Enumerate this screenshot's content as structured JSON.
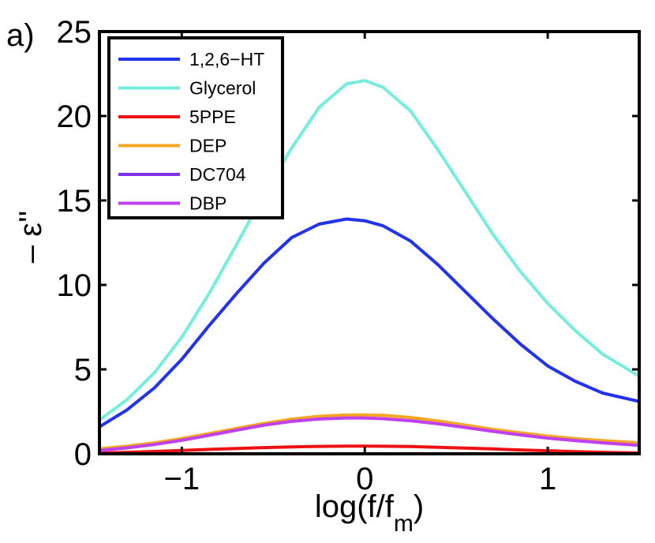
{
  "chart_data": {
    "type": "line",
    "panel_label": "a)",
    "xlabel": {
      "main": "log(f/f",
      "sub": "m",
      "close": ")"
    },
    "ylabel": "– ε''",
    "xlim": [
      -1.45,
      1.5
    ],
    "ylim": [
      0,
      25
    ],
    "xticks": [
      {
        "value": -1,
        "label": "−1"
      },
      {
        "value": 0,
        "label": "0"
      },
      {
        "value": 1,
        "label": "1"
      }
    ],
    "yticks": [
      {
        "value": 0,
        "label": "0"
      },
      {
        "value": 5,
        "label": "5"
      },
      {
        "value": 10,
        "label": "10"
      },
      {
        "value": 15,
        "label": "15"
      },
      {
        "value": 20,
        "label": "20"
      },
      {
        "value": 25,
        "label": "25"
      }
    ],
    "grid": false,
    "legend_position": "top-left",
    "x": [
      -1.45,
      -1.3,
      -1.15,
      -1.0,
      -0.85,
      -0.7,
      -0.55,
      -0.4,
      -0.25,
      -0.1,
      0.0,
      0.1,
      0.25,
      0.4,
      0.55,
      0.7,
      0.85,
      1.0,
      1.15,
      1.3,
      1.5
    ],
    "series": [
      {
        "name": "1,2,6−HT",
        "color": "#2233ee",
        "values": [
          1.6,
          2.6,
          3.9,
          5.6,
          7.6,
          9.5,
          11.3,
          12.8,
          13.6,
          13.9,
          13.8,
          13.5,
          12.6,
          11.2,
          9.6,
          8.0,
          6.5,
          5.2,
          4.3,
          3.6,
          3.1
        ]
      },
      {
        "name": "Glycerol",
        "color": "#77eedd",
        "values": [
          2.0,
          3.2,
          4.8,
          6.9,
          9.5,
          12.4,
          15.4,
          18.1,
          20.5,
          21.9,
          22.1,
          21.7,
          20.3,
          18.0,
          15.5,
          13.0,
          10.8,
          8.9,
          7.3,
          5.9,
          4.6
        ]
      },
      {
        "name": "5PPE",
        "color": "#ee1111",
        "values": [
          0.05,
          0.09,
          0.14,
          0.2,
          0.26,
          0.32,
          0.37,
          0.41,
          0.44,
          0.46,
          0.46,
          0.45,
          0.43,
          0.39,
          0.34,
          0.29,
          0.23,
          0.18,
          0.13,
          0.09,
          0.05
        ]
      },
      {
        "name": "DEP",
        "color": "#f5a623",
        "values": [
          0.3,
          0.45,
          0.65,
          0.9,
          1.2,
          1.5,
          1.8,
          2.05,
          2.22,
          2.3,
          2.3,
          2.28,
          2.15,
          1.95,
          1.7,
          1.45,
          1.25,
          1.05,
          0.9,
          0.78,
          0.65
        ]
      },
      {
        "name": "DC704",
        "color": "#7e30e8",
        "values": [
          0.0,
          0.0,
          0.0,
          0.0,
          0.0,
          0.0,
          0.0,
          0.0,
          0.0,
          0.0,
          0.0,
          0.0,
          0.0,
          0.0,
          0.0,
          0.0,
          0.0,
          0.0,
          0.0,
          0.0,
          0.0
        ]
      },
      {
        "name": "DBP",
        "color": "#c040f0",
        "values": [
          0.2,
          0.35,
          0.55,
          0.8,
          1.1,
          1.4,
          1.7,
          1.92,
          2.06,
          2.12,
          2.12,
          2.08,
          1.96,
          1.78,
          1.56,
          1.33,
          1.12,
          0.93,
          0.78,
          0.65,
          0.5
        ]
      }
    ]
  }
}
